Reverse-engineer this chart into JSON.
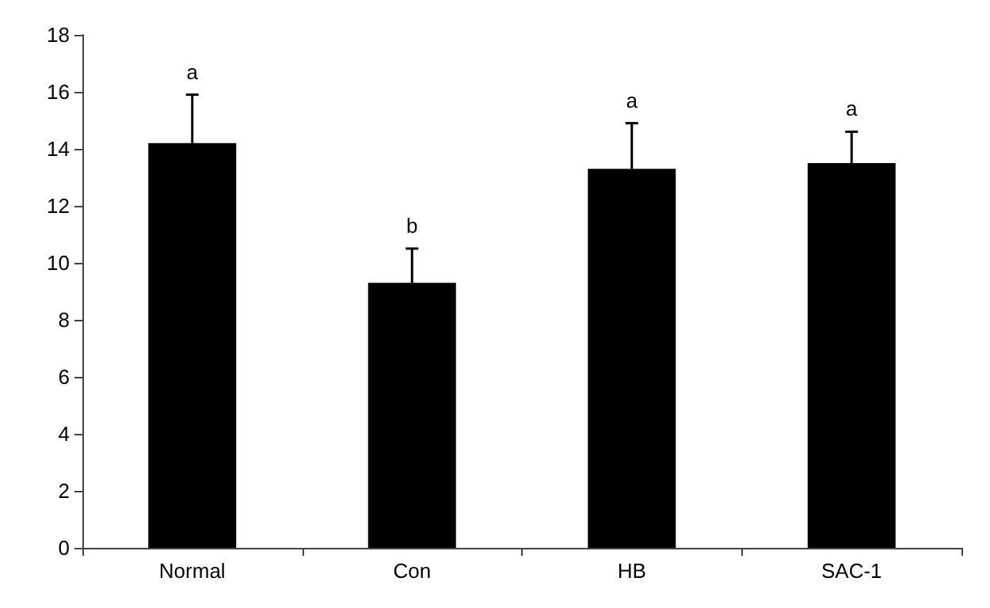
{
  "chart_data": {
    "type": "bar",
    "categories": [
      "Normal",
      "Con",
      "HB",
      "SAC-1"
    ],
    "values": [
      14.2,
      9.3,
      13.3,
      13.5
    ],
    "color": "#000000",
    "errors": [
      [
        14.2,
        15.9
      ],
      [
        9.3,
        10.5
      ],
      [
        13.3,
        14.9
      ],
      [
        13.5,
        14.6
      ]
    ],
    "ylim": [
      0,
      18
    ],
    "yticks": [
      0,
      2,
      4,
      6,
      8,
      10,
      12,
      14,
      16,
      18
    ],
    "grid": false,
    "annotations": [
      {
        "text": "a",
        "x": "Normal",
        "y": 15.9
      },
      {
        "text": "b",
        "x": "Con",
        "y": 10.5
      },
      {
        "text": "a",
        "x": "HB",
        "y": 14.9
      },
      {
        "text": "a",
        "x": "SAC-1",
        "y": 14.6
      }
    ]
  }
}
